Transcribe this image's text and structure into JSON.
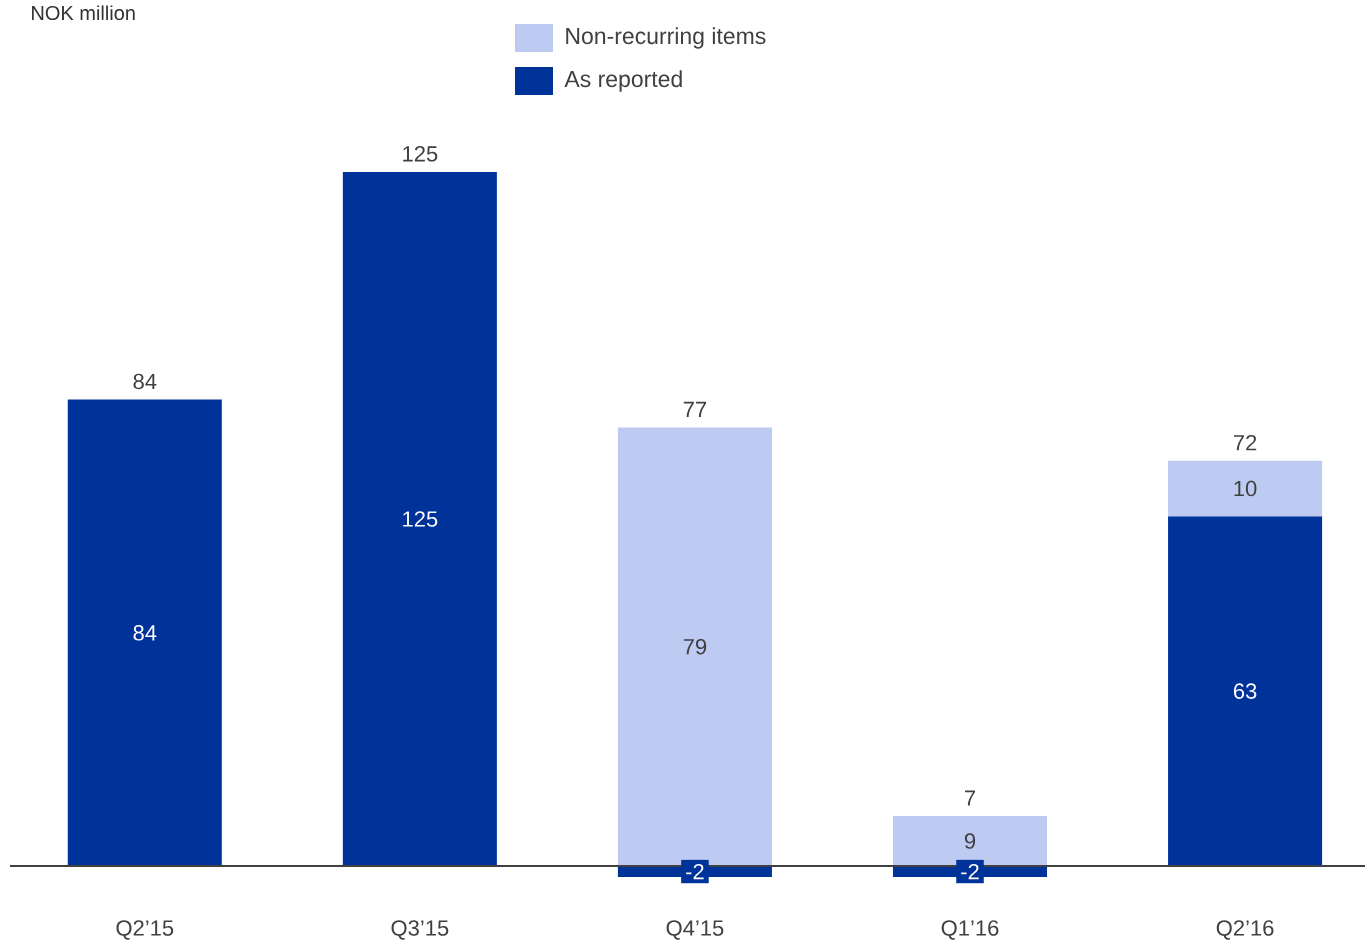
{
  "chart_data": {
    "type": "bar",
    "stacked": true,
    "annotations": [
      "NOK million"
    ],
    "categories": [
      "Q2’15",
      "Q3’15",
      "Q4’15",
      "Q1’16",
      "Q2’16"
    ],
    "series": [
      {
        "name": "As reported",
        "color": "#003399",
        "values": [
          84,
          125,
          -2,
          -2,
          63
        ]
      },
      {
        "name": "Non-recurring items",
        "color": "#bdcaf2",
        "values": [
          null,
          null,
          79,
          9,
          10
        ]
      }
    ],
    "data_labels": true,
    "totals": [
      "84",
      "125",
      "77",
      "7",
      "72"
    ],
    "legend": "top"
  }
}
